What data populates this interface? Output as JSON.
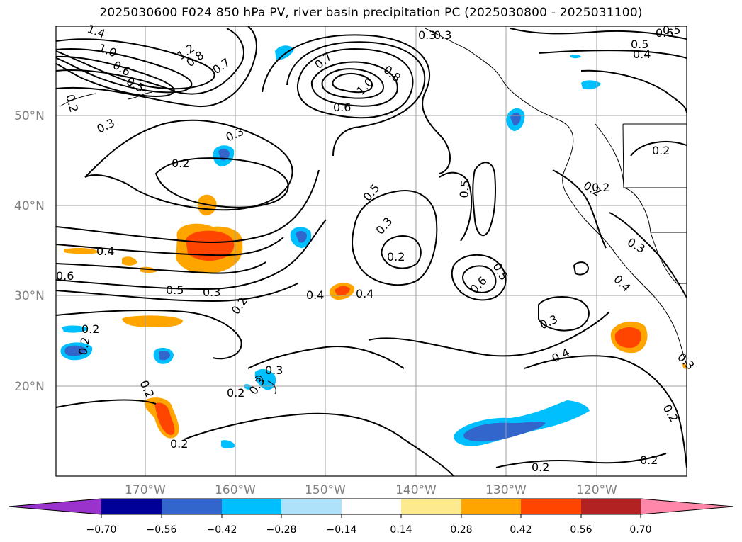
{
  "title": "2025030600 F024 850 hPa PV, river basin precipitation PC (2025030800 - 2025031100)",
  "map": {
    "lat_labels": [
      "50°N",
      "40°N",
      "30°N",
      "20°N"
    ],
    "lon_labels": [
      "170°W",
      "160°W",
      "150°W",
      "140°W",
      "130°W",
      "120°W"
    ],
    "contour_labels": [
      "1.4",
      "1.0",
      "1.2",
      "0.8",
      "0.7",
      "0.6",
      "0.5",
      "0.2",
      "0.3",
      "0.3",
      "0.2",
      "0.7",
      "1.0",
      "0.8",
      "0.6",
      "0.5",
      "0.4",
      "0.3",
      "0.2",
      "0.5",
      "0.5",
      "0.3",
      "0.2",
      "0.4",
      "0.6",
      "0.5",
      "0.3",
      "0.2",
      "0.4",
      "0.4",
      "0.6",
      "0.5",
      "0.2",
      "0.3",
      "0.2",
      "0.2",
      "0.2",
      "0.3",
      "0.4",
      "0.2",
      "0.2",
      "0.2",
      "0.2",
      "0.3",
      "0.5",
      "0.6",
      "0.4",
      "0.3",
      "0.2",
      "0.3",
      "0.3",
      "0.2"
    ],
    "colors": {
      "land": "#ffffff",
      "grid": "#a0a0a0",
      "contour": "#000000"
    }
  },
  "colorbar": {
    "ticks": [
      "−0.70",
      "−0.56",
      "−0.42",
      "−0.28",
      "−0.14",
      "0.14",
      "0.28",
      "0.42",
      "0.56",
      "0.70"
    ],
    "colors": [
      "#9933cc",
      "#000099",
      "#3366cc",
      "#00bfff",
      "#aee2fb",
      "#ffffff",
      "#fde98e",
      "#ffa500",
      "#ff4500",
      "#b22222",
      "#ff88aa"
    ]
  }
}
